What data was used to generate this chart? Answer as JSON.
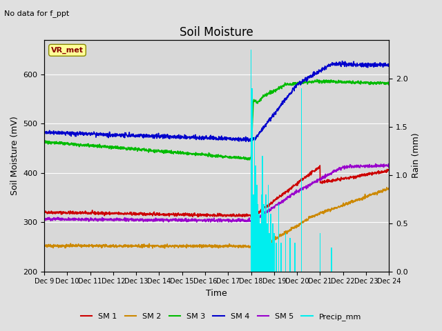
{
  "title": "Soil Moisture",
  "subtitle": "No data for f_ppt",
  "ylabel_left": "Soil Moisture (mV)",
  "ylabel_right": "Rain (mm)",
  "xlabel": "Time",
  "ylim_left": [
    200,
    670
  ],
  "ylim_right": [
    0.0,
    2.4
  ],
  "xtick_labels": [
    "Dec 9",
    "Dec 10",
    "Dec 11",
    "Dec 12",
    "Dec 13",
    "Dec 14",
    "Dec 15",
    "Dec 16",
    "Dec 17",
    "Dec 18",
    "Dec 19",
    "Dec 20",
    "Dec 21",
    "Dec 22",
    "Dec 23",
    "Dec 24"
  ],
  "legend_entries": [
    "SM 1",
    "SM 2",
    "SM 3",
    "SM 4",
    "SM 5",
    "Precip_mm"
  ],
  "sm1_color": "#cc0000",
  "sm2_color": "#cc8800",
  "sm3_color": "#00bb00",
  "sm4_color": "#0000cc",
  "sm5_color": "#9900cc",
  "precip_color": "#00eeee",
  "fig_facecolor": "#e0e0e0",
  "ax_facecolor": "#d8d8d8",
  "vr_met_facecolor": "#ffff99",
  "vr_met_edgecolor": "#888800",
  "vr_met_textcolor": "#880000"
}
